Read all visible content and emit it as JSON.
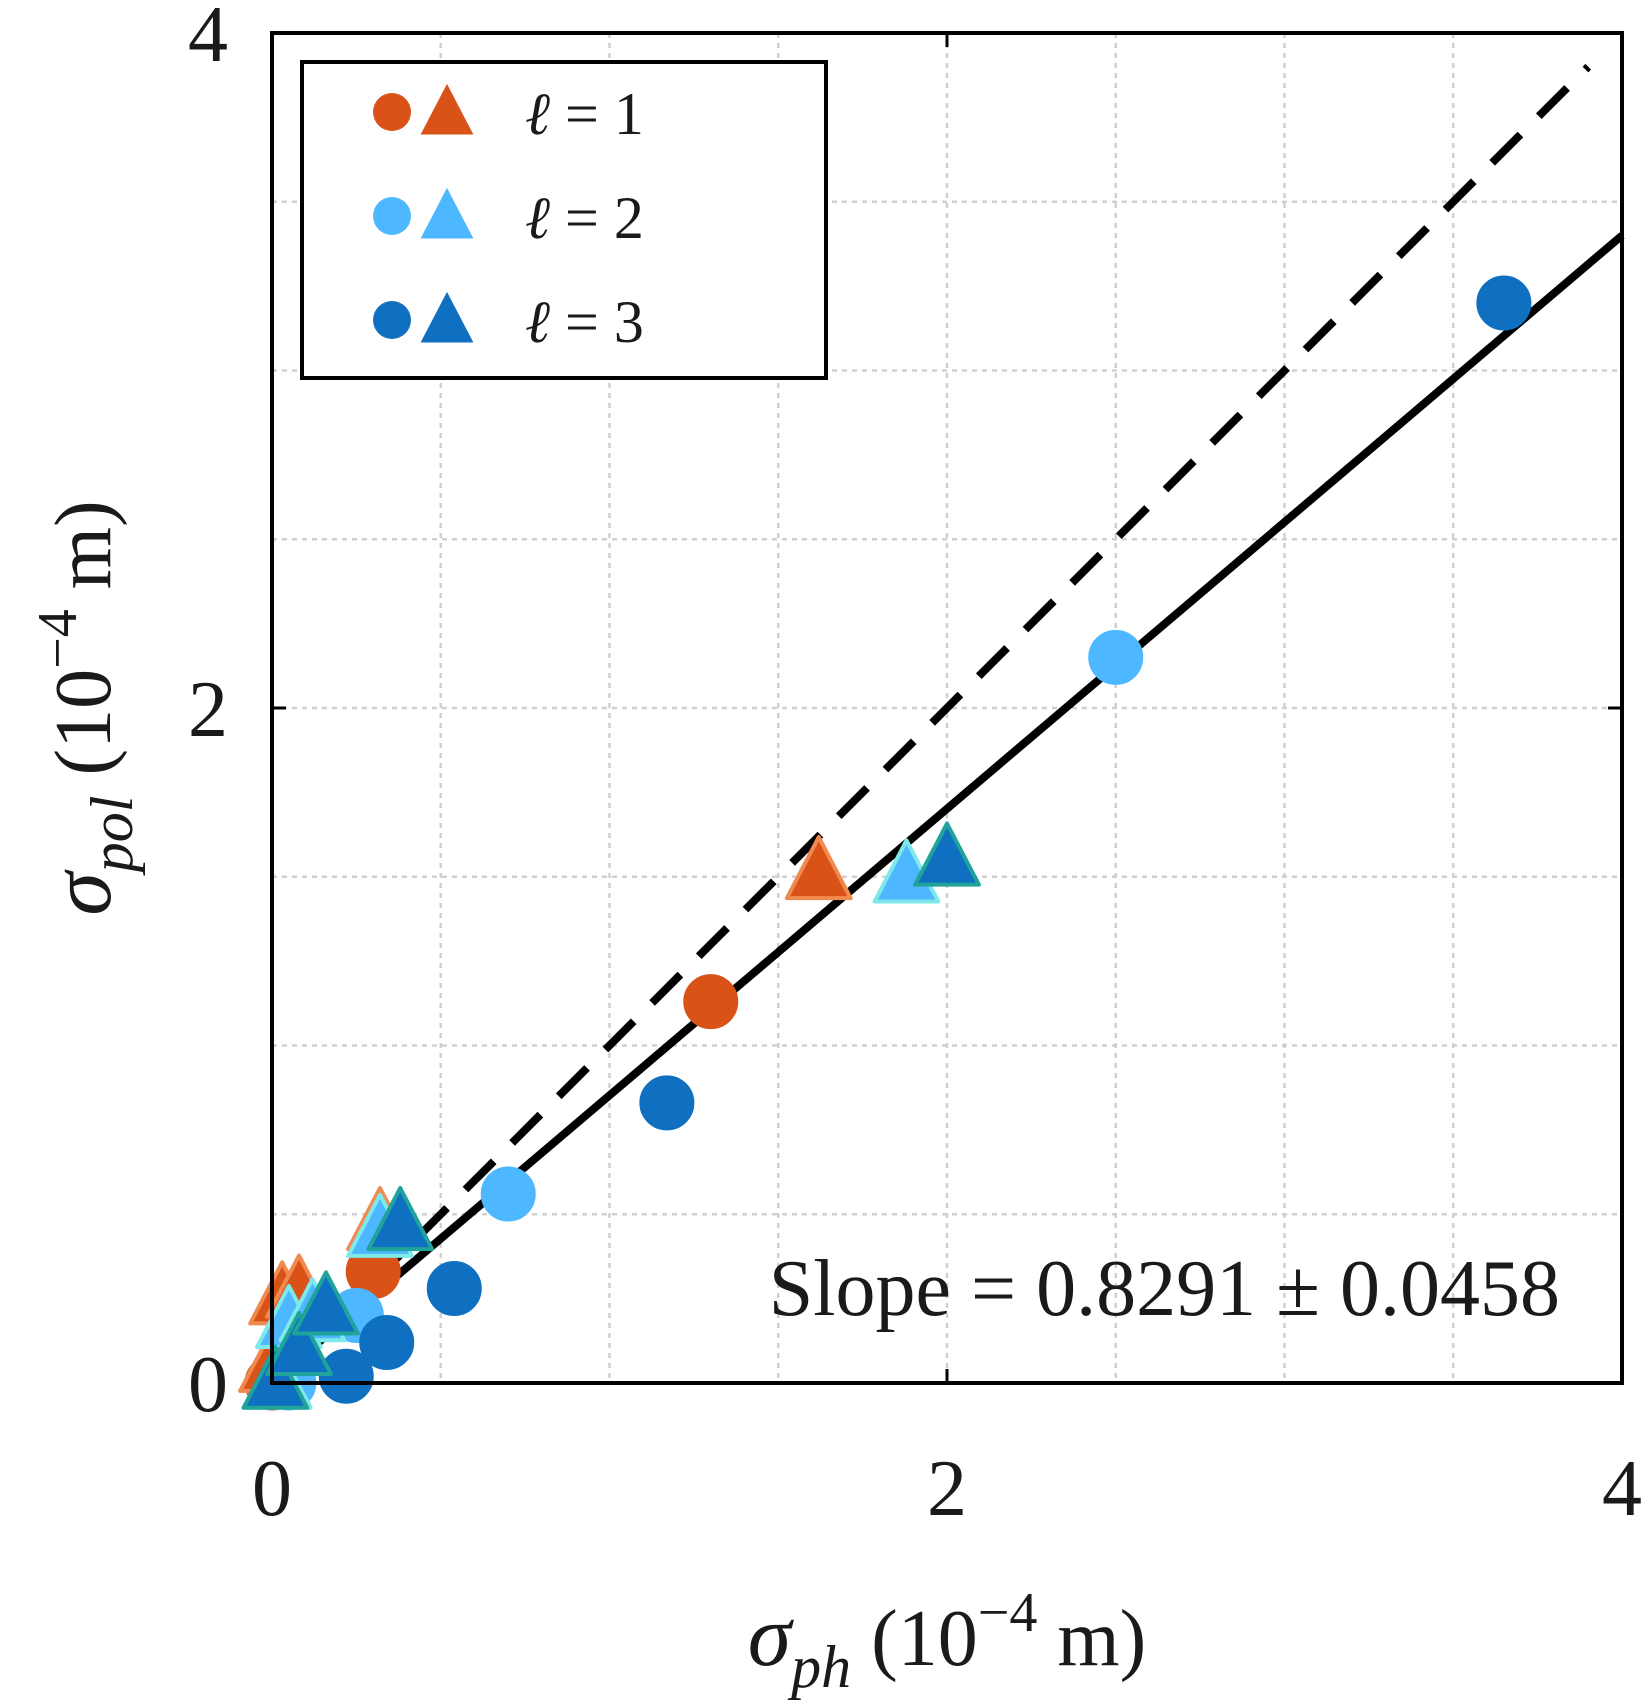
{
  "chart_data": {
    "type": "scatter",
    "title": "",
    "xlabel": {
      "sym": "σ",
      "sub": "ph",
      "open": " (10",
      "sup": "−4",
      "close": " m)"
    },
    "ylabel": {
      "sym": "σ",
      "sub": "pol",
      "open": " (10",
      "sup": "−4",
      "close": " m)"
    },
    "xlim": [
      0,
      4
    ],
    "ylim": [
      0,
      4
    ],
    "xticks": [
      0,
      2,
      4
    ],
    "yticks": [
      0,
      2,
      4
    ],
    "xtick_labels": [
      "0",
      "2",
      "4"
    ],
    "ytick_labels": [
      "0",
      "2",
      "4"
    ],
    "minor_grid_step": 0.5,
    "grid": true,
    "legend_position": "top-left",
    "legend": [
      {
        "label_var": "ℓ",
        "label_rest": " = 1",
        "circle_color": "#D95319",
        "triangle_color": "#D95319"
      },
      {
        "label_var": "ℓ",
        "label_rest": " = 2",
        "circle_color": "#4DB8FF",
        "triangle_color": "#4DB8FF"
      },
      {
        "label_var": "ℓ",
        "label_rest": " = 3",
        "circle_color": "#0F6FC0",
        "triangle_color": "#0F6FC0"
      }
    ],
    "annotation": "Slope = 0.8291 ± 0.0458",
    "lines": [
      {
        "name": "identity",
        "style": "dashed",
        "color": "#000000",
        "x": [
          0.02,
          3.9
        ],
        "y": [
          0.02,
          3.9
        ]
      },
      {
        "name": "fit",
        "style": "solid",
        "color": "#000000",
        "x": [
          0.02,
          4.0
        ],
        "y": [
          0.02,
          3.4
        ]
      }
    ],
    "series": [
      {
        "name": "ℓ = 1 circles",
        "marker": "circle",
        "color": "#D95319",
        "edge": "#D95319",
        "x": [
          0.0,
          0.3,
          1.3
        ],
        "y": [
          0.0,
          0.33,
          1.13
        ]
      },
      {
        "name": "ℓ = 1 triangles",
        "marker": "triangle",
        "color": "#D95319",
        "edge": "#F08A50",
        "x": [
          0.0,
          0.03,
          0.08,
          0.32,
          1.62
        ],
        "y": [
          0.05,
          0.25,
          0.27,
          0.47,
          1.51
        ]
      },
      {
        "name": "ℓ = 2 circles",
        "marker": "circle",
        "color": "#4DB8FF",
        "edge": "#4DB8FF",
        "x": [
          0.05,
          0.25,
          0.7,
          2.5
        ],
        "y": [
          0.0,
          0.2,
          0.56,
          2.15
        ]
      },
      {
        "name": "ℓ = 2 triangles",
        "marker": "triangle",
        "color": "#4DB8FF",
        "edge": "#7FE8E8",
        "x": [
          0.02,
          0.05,
          0.12,
          0.32,
          1.88
        ],
        "y": [
          0.0,
          0.18,
          0.2,
          0.45,
          1.5
        ]
      },
      {
        "name": "ℓ = 3 circles",
        "marker": "circle",
        "color": "#0F6FC0",
        "edge": "#0F6FC0",
        "x": [
          0.22,
          0.34,
          0.54,
          1.17,
          3.65
        ],
        "y": [
          0.02,
          0.12,
          0.28,
          0.83,
          3.2
        ]
      },
      {
        "name": "ℓ = 3 triangles",
        "marker": "triangle",
        "color": "#0F6FC0",
        "edge": "#1FA39A",
        "x": [
          0.01,
          0.08,
          0.16,
          0.38,
          2.0
        ],
        "y": [
          0.0,
          0.1,
          0.22,
          0.47,
          1.55
        ]
      }
    ]
  }
}
